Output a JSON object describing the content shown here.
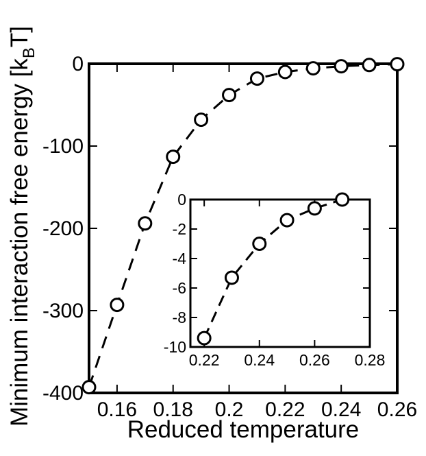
{
  "chart_data": [
    {
      "type": "line",
      "xlabel": "Reduced temperature",
      "ylabel_main": "Minimum interaction free energy [k",
      "ylabel_sub": "B",
      "ylabel_tail": "T]",
      "xlim": [
        0.15,
        0.26
      ],
      "ylim": [
        -400,
        0
      ],
      "xticks": [
        "0.16",
        "0.18",
        "0.2",
        "0.22",
        "0.24",
        "0.26"
      ],
      "yticks": [
        "0",
        "-100",
        "-200",
        "-300",
        "-400"
      ],
      "line_style": "dashed",
      "marker": "open-circle",
      "grid": false,
      "x": [
        0.15,
        0.16,
        0.17,
        0.18,
        0.19,
        0.2,
        0.21,
        0.22,
        0.23,
        0.24,
        0.25,
        0.26
      ],
      "y": [
        -393,
        -293,
        -194,
        -113,
        -68,
        -38,
        -18,
        -10,
        -5.5,
        -3,
        -1.5,
        -0.5
      ]
    },
    {
      "type": "line",
      "inset": true,
      "xlim": [
        0.215,
        0.28
      ],
      "ylim": [
        -10,
        0
      ],
      "xticks": [
        "0.22",
        "0.24",
        "0.26",
        "0.28"
      ],
      "yticks": [
        "0",
        "-2",
        "-4",
        "-6",
        "-8",
        "-10"
      ],
      "line_style": "dashed",
      "marker": "open-circle",
      "grid": false,
      "x": [
        0.22,
        0.23,
        0.24,
        0.25,
        0.26,
        0.27
      ],
      "y": [
        -9.4,
        -5.3,
        -3.0,
        -1.4,
        -0.6,
        0.0
      ]
    }
  ]
}
